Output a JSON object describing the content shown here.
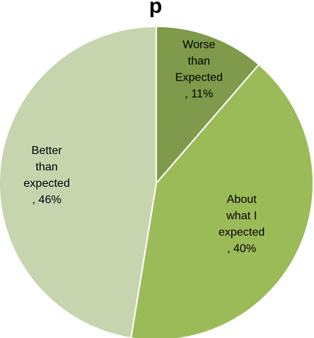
{
  "chart_data": {
    "type": "pie",
    "title": "",
    "visible_title_fragment": "p",
    "start_angle_deg": 0,
    "direction": "clockwise",
    "legend": "none",
    "slices": [
      {
        "label_lines": [
          "Worse",
          "than",
          "Expected",
          ", 11%"
        ],
        "value": 11,
        "color": "#7E9A4A"
      },
      {
        "label_lines": [
          "About",
          "what I",
          "expected",
          ", 40%"
        ],
        "value": 40,
        "color": "#9BBB59"
      },
      {
        "label_lines": [
          "Better",
          "than",
          "expected",
          ", 46%"
        ],
        "value": 46,
        "color": "#C6D5AE"
      }
    ]
  }
}
